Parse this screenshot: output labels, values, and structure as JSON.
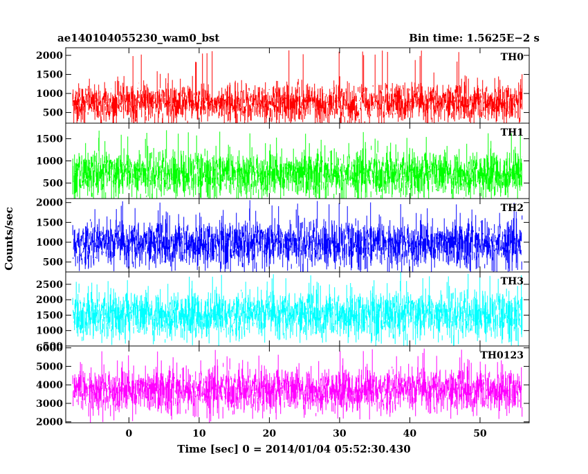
{
  "chart_data": {
    "type": "line",
    "title_left": "ae140104055230_wam0_bst",
    "title_right": "Bin time: 1.5625E−2 s",
    "xlabel": "Time [sec] 0 = 2014/01/04 05:52:30.430",
    "ylabel": "Counts/sec",
    "xlim": [
      -9,
      57
    ],
    "x_ticks": [
      0,
      10,
      20,
      30,
      40,
      50
    ],
    "x_tick_labels": [
      "0",
      "10",
      "20",
      "30",
      "40",
      "50"
    ],
    "x_data_range": [
      -8,
      56
    ],
    "bin_time": 0.015625,
    "panels": [
      {
        "name": "TH0",
        "color": "#ff0000",
        "ylim": [
          220,
          2200
        ],
        "y_ticks": [
          500,
          1000,
          1500,
          2000
        ],
        "y_tick_labels": [
          "500",
          "1000",
          "1500",
          "2000"
        ],
        "mean": 750,
        "typical_high": 1350,
        "typical_low": 280,
        "peak_max": 2150
      },
      {
        "name": "TH1",
        "color": "#00ff00",
        "ylim": [
          150,
          1850
        ],
        "y_ticks": [
          500,
          1000,
          1500
        ],
        "y_tick_labels": [
          "500",
          "1000",
          "1500"
        ],
        "mean": 700,
        "typical_high": 1300,
        "typical_low": 220,
        "peak_max": 1700
      },
      {
        "name": "TH2",
        "color": "#0000ff",
        "ylim": [
          250,
          2100
        ],
        "y_ticks": [
          500,
          1000,
          1500,
          2000
        ],
        "y_tick_labels": [
          "500",
          "1000",
          "1500",
          "2000"
        ],
        "mean": 950,
        "typical_high": 1600,
        "typical_low": 380,
        "peak_max": 2050
      },
      {
        "name": "TH3",
        "color": "#00ffff",
        "ylim": [
          500,
          2900
        ],
        "y_ticks": [
          500,
          1000,
          1500,
          2000,
          2500
        ],
        "y_tick_labels": [
          "500",
          "1000",
          "1500",
          "2000",
          "2500"
        ],
        "mean": 1500,
        "typical_high": 2350,
        "typical_low": 750,
        "peak_max": 2850
      },
      {
        "name": "TH0123",
        "color": "#ff00ff",
        "ylim": [
          1950,
          6100
        ],
        "y_ticks": [
          2000,
          3000,
          4000,
          5000,
          6000
        ],
        "y_tick_labels": [
          "2000",
          "3000",
          "4000",
          "5000",
          "6000"
        ],
        "mean": 3700,
        "typical_high": 5000,
        "typical_low": 2500,
        "peak_max": 6000
      }
    ]
  }
}
